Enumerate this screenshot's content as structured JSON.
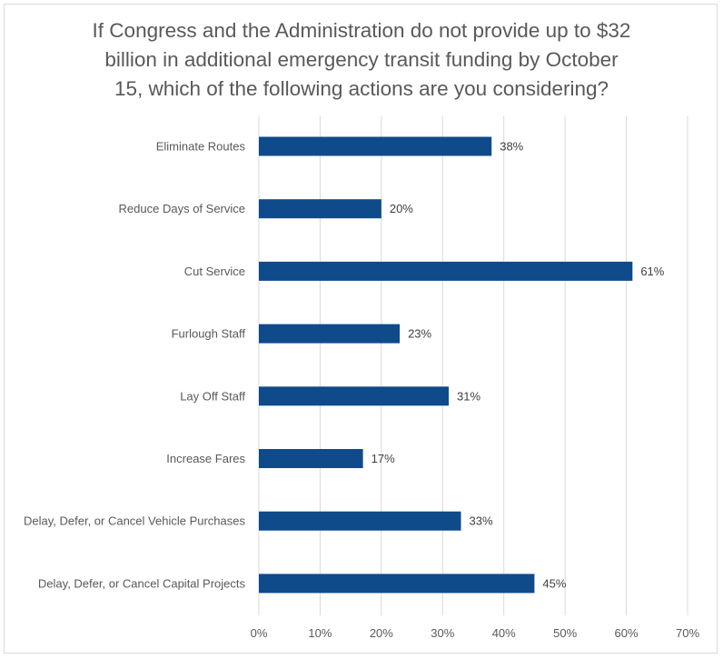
{
  "chart_data": {
    "type": "bar",
    "orientation": "horizontal",
    "title_lines": [
      "If Congress and the Administration do not provide up to $32",
      "billion in additional emergency transit funding by October",
      "15, which of the following actions are you considering?"
    ],
    "categories": [
      "Eliminate Routes",
      "Reduce Days of Service",
      "Cut Service",
      "Furlough Staff",
      "Lay Off Staff",
      "Increase Fares",
      "Delay, Defer, or Cancel Vehicle Purchases",
      "Delay, Defer, or Cancel Capital Projects"
    ],
    "values": [
      38,
      20,
      61,
      23,
      31,
      17,
      33,
      45
    ],
    "data_labels": [
      "38%",
      "20%",
      "61%",
      "23%",
      "31%",
      "17%",
      "33%",
      "45%"
    ],
    "xlim": [
      0,
      70
    ],
    "x_ticks": [
      0,
      10,
      20,
      30,
      40,
      50,
      60,
      70
    ],
    "x_tick_labels": [
      "0%",
      "10%",
      "20%",
      "30%",
      "40%",
      "50%",
      "60%",
      "70%"
    ],
    "grid": "vertical",
    "legend": "none",
    "colors": {
      "bar": "#0f4a8a",
      "grid": "#d9d9d9",
      "text": "#595959",
      "border": "#d9d9d9"
    }
  }
}
